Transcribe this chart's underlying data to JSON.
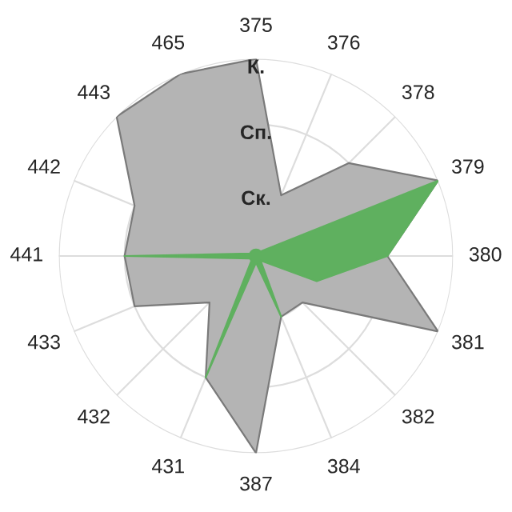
{
  "chart_data": {
    "type": "radar",
    "categories": [
      "375",
      "376",
      "378",
      "379",
      "380",
      "381",
      "382",
      "384",
      "387",
      "431",
      "432",
      "433",
      "441",
      "442",
      "443",
      "465"
    ],
    "ylim": [
      0,
      3
    ],
    "yticks": [
      {
        "value": 1,
        "label": "Ск."
      },
      {
        "value": 2,
        "label": "Сп."
      },
      {
        "value": 3,
        "label": "К."
      }
    ],
    "grid": true,
    "legend": false,
    "series": [
      {
        "color": "#b4b4b4",
        "values": [
          3,
          1,
          2,
          3,
          2,
          3,
          1,
          1,
          3,
          2,
          1,
          2,
          2,
          2,
          3,
          3
        ]
      },
      {
        "color": "#5fb05f",
        "values": [
          0.1,
          0.1,
          0.1,
          3,
          2,
          1,
          0.1,
          1,
          0.1,
          2,
          0.1,
          0.1,
          2,
          0.1,
          0.1,
          0.1
        ]
      }
    ]
  }
}
